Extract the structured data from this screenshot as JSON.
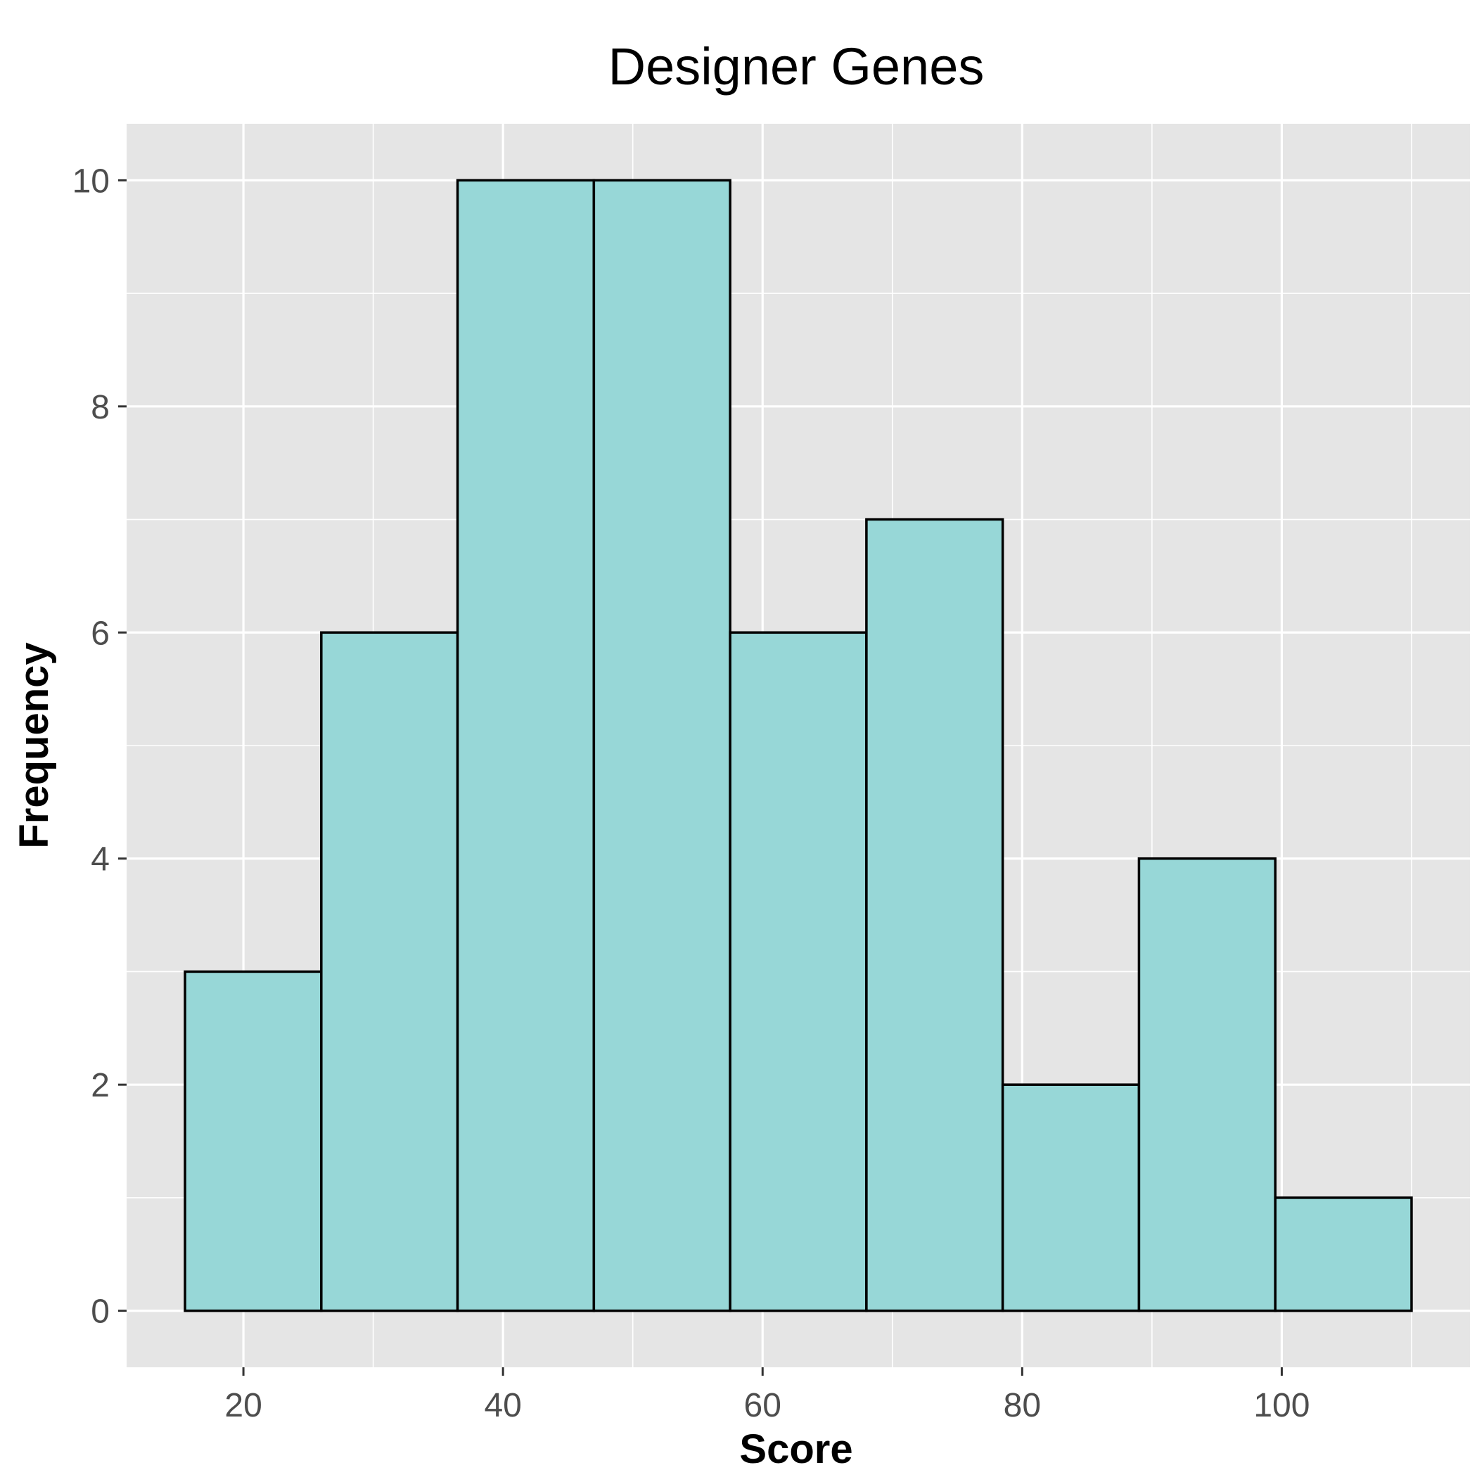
{
  "chart_data": {
    "type": "histogram",
    "title": "Designer Genes",
    "xlabel": "Score",
    "ylabel": "Frequency",
    "bins": [
      {
        "start": 15.5,
        "end": 26.0,
        "count": 3
      },
      {
        "start": 26.0,
        "end": 36.5,
        "count": 6
      },
      {
        "start": 36.5,
        "end": 47.0,
        "count": 10
      },
      {
        "start": 47.0,
        "end": 57.5,
        "count": 10
      },
      {
        "start": 57.5,
        "end": 68.0,
        "count": 6
      },
      {
        "start": 68.0,
        "end": 78.5,
        "count": 7
      },
      {
        "start": 78.5,
        "end": 89.0,
        "count": 2
      },
      {
        "start": 89.0,
        "end": 99.5,
        "count": 4
      },
      {
        "start": 99.5,
        "end": 110.0,
        "count": 1
      }
    ],
    "xlim": [
      11.0,
      114.5
    ],
    "ylim": [
      -0.5,
      10.5
    ],
    "x_ticks": [
      20,
      40,
      60,
      80,
      100
    ],
    "y_ticks": [
      0,
      2,
      4,
      6,
      8,
      10
    ],
    "x_tick_labels": [
      "20",
      "40",
      "60",
      "80",
      "100"
    ],
    "y_tick_labels": [
      "0",
      "2",
      "4",
      "6",
      "8",
      "10"
    ],
    "bar_fill": "#97D7D7",
    "bar_outline": "#000000",
    "panel_background": "#E5E5E5",
    "grid": true
  }
}
